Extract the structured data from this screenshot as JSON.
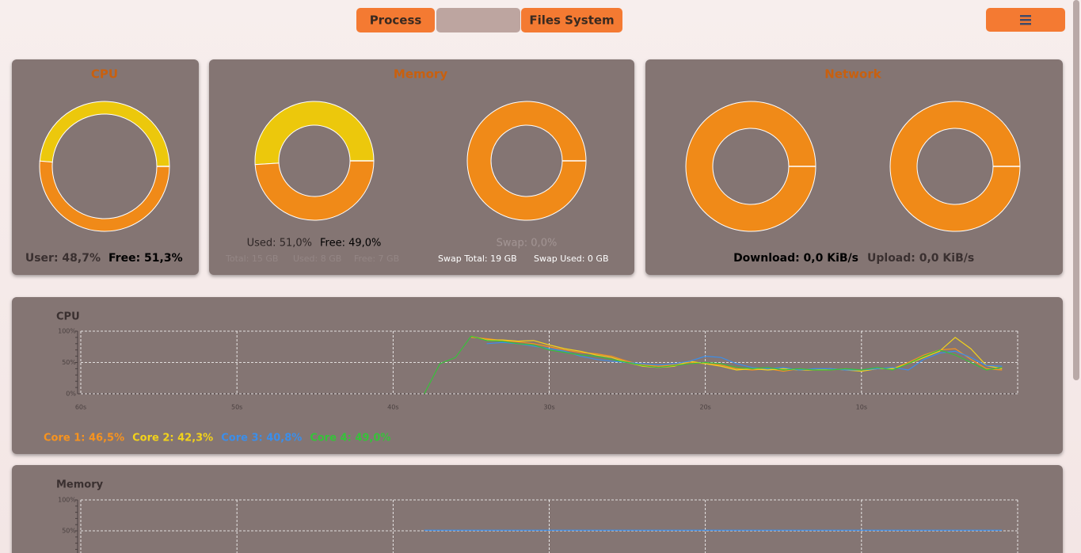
{
  "nav": {
    "tabs": [
      "Process",
      "Files System"
    ]
  },
  "summary": {
    "cpu": {
      "title": "CPU",
      "segments": [
        {
          "text": "User: 48,7%",
          "value": 48.7,
          "color": "#ecc80c"
        },
        {
          "text": "Free: 51,3%",
          "value": 51.3,
          "color": "#f08a18"
        }
      ]
    },
    "memory": {
      "title": "Memory",
      "ram": {
        "segments": [
          {
            "text": "Used: 51,0%",
            "value": 51.0,
            "color": "#ecc80c"
          },
          {
            "text": "Free: 49,0%",
            "value": 49.0,
            "color": "#f08a18"
          }
        ],
        "details": [
          "Total: 15 GB",
          "Used: 8 GB",
          "Free: 7 GB"
        ]
      },
      "swap": {
        "segments": [
          {
            "text": "Swap: 0,0%",
            "value": 0,
            "color": "#ecc80c"
          }
        ],
        "details": [
          "Swap Total: 19 GB",
          "Swap Used: 0 GB"
        ]
      }
    },
    "network": {
      "title": "Network",
      "download": {
        "text": "Download: 0,0 KiB/s",
        "value": 0,
        "color": "#ecc80c"
      },
      "upload": {
        "text": "Upload: 0,0 KiB/s",
        "value": 0,
        "color": "#ecc80c"
      }
    }
  },
  "charts": [
    {
      "type": "line",
      "title": "CPU",
      "x": [
        38,
        37,
        36,
        35,
        34,
        33,
        32,
        31,
        30,
        29,
        28,
        27,
        26,
        25,
        24,
        23,
        22,
        21,
        20,
        19,
        18,
        17,
        16,
        15,
        14,
        13,
        12,
        11,
        10,
        9,
        8,
        7,
        6,
        5,
        4,
        3,
        2,
        1
      ],
      "xlim": [
        60,
        0
      ],
      "xticks": [
        {
          "value": 60,
          "label": "60s"
        },
        {
          "value": 50,
          "label": "50s"
        },
        {
          "value": 40,
          "label": "40s"
        },
        {
          "value": 30,
          "label": "30s"
        },
        {
          "value": 20,
          "label": "20s"
        },
        {
          "value": 10,
          "label": "10s"
        }
      ],
      "ylim": [
        0,
        100
      ],
      "yticks": [
        {
          "value": 100,
          "label": "100%"
        },
        {
          "value": 50,
          "label": "50%"
        },
        {
          "value": 0,
          "label": "0%"
        }
      ],
      "grid": true,
      "series": [
        {
          "name": "Core 1: 46,5%",
          "color": "#f7931e",
          "values": [
            null,
            null,
            null,
            90,
            88,
            85,
            83,
            80,
            75,
            70,
            66,
            64,
            60,
            52,
            46,
            44,
            46,
            50,
            48,
            46,
            40,
            38,
            40,
            36,
            40,
            38,
            38,
            40,
            36,
            40,
            40,
            50,
            62,
            70,
            72,
            55,
            40,
            38
          ]
        },
        {
          "name": "Core 2: 42,3%",
          "color": "#f2d21a",
          "values": [
            null,
            null,
            null,
            92,
            86,
            86,
            84,
            85,
            78,
            72,
            68,
            62,
            58,
            50,
            44,
            42,
            44,
            52,
            48,
            44,
            38,
            40,
            38,
            40,
            38,
            38,
            40,
            38,
            36,
            40,
            40,
            48,
            58,
            68,
            90,
            72,
            45,
            40
          ]
        },
        {
          "name": "Core 3: 40,8%",
          "color": "#3b8eea",
          "values": [
            null,
            null,
            null,
            null,
            80,
            82,
            80,
            76,
            72,
            68,
            60,
            55,
            52,
            50,
            48,
            46,
            48,
            52,
            60,
            58,
            48,
            42,
            40,
            42,
            38,
            40,
            40,
            38,
            38,
            40,
            42,
            38,
            55,
            65,
            68,
            58,
            45,
            44
          ]
        },
        {
          "name": "Core 4: 49,0%",
          "color": "#36c23a",
          "values": [
            0,
            48,
            58,
            92,
            85,
            84,
            80,
            78,
            70,
            66,
            62,
            60,
            55,
            50,
            45,
            42,
            45,
            48,
            50,
            48,
            42,
            40,
            42,
            38,
            40,
            38,
            38,
            40,
            38,
            42,
            38,
            48,
            60,
            70,
            62,
            50,
            38,
            42
          ]
        }
      ]
    },
    {
      "type": "line",
      "title": "Memory",
      "x": [
        38,
        37,
        36,
        35,
        34,
        33,
        32,
        31,
        30,
        29,
        28,
        27,
        26,
        25,
        24,
        23,
        22,
        21,
        20,
        19,
        18,
        17,
        16,
        15,
        14,
        13,
        12,
        11,
        10,
        9,
        8,
        7,
        6,
        5,
        4,
        3,
        2,
        1
      ],
      "xlim": [
        60,
        0
      ],
      "xticks": [
        60,
        50,
        40,
        30,
        20,
        10
      ],
      "ylim": [
        0,
        100
      ],
      "yticks": [
        {
          "value": 100,
          "label": "100%"
        },
        {
          "value": 50,
          "label": "50%"
        }
      ],
      "grid": true,
      "series": [
        {
          "color": "#3b8eea",
          "values": [
            51,
            51,
            51,
            51,
            51,
            51,
            51,
            51,
            51,
            51,
            51,
            51,
            51,
            51,
            51,
            51,
            51,
            51,
            51,
            51,
            51,
            51,
            51,
            51,
            51,
            51,
            51,
            51,
            51,
            51,
            51,
            51,
            51,
            51,
            51,
            51,
            51,
            51
          ]
        }
      ]
    }
  ]
}
